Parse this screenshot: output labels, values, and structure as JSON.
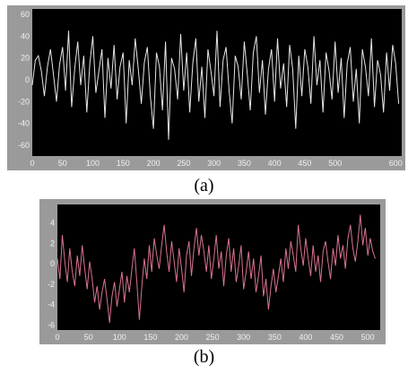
{
  "figures": [
    {
      "caption": "(a)"
    },
    {
      "caption": "(b)"
    }
  ],
  "chart_data": [
    {
      "type": "line",
      "title": "",
      "xlabel": "",
      "ylabel": "",
      "xlim": [
        0,
        610
      ],
      "ylim": [
        -70,
        65
      ],
      "xticks": [
        "0",
        "50",
        "100",
        "150",
        "200",
        "250",
        "300",
        "350",
        "400",
        "450",
        "500",
        "600"
      ],
      "xtick_values": [
        0,
        50,
        100,
        150,
        200,
        250,
        300,
        350,
        400,
        450,
        500,
        600
      ],
      "yticks": [
        "60",
        "40",
        "20",
        "0",
        "-20",
        "-40",
        "-60"
      ],
      "ytick_values": [
        60,
        40,
        20,
        0,
        -20,
        -40,
        -60
      ],
      "grid": false,
      "background": "#000000",
      "line_color": "#e6e6e6",
      "series": [
        {
          "x_step": 5,
          "values": [
            -5,
            18,
            22,
            8,
            -15,
            12,
            28,
            5,
            -20,
            14,
            30,
            -10,
            45,
            -25,
            10,
            35,
            -5,
            22,
            -30,
            15,
            40,
            -12,
            8,
            28,
            -35,
            20,
            -8,
            32,
            -18,
            12,
            25,
            -40,
            18,
            -5,
            38,
            10,
            -22,
            16,
            30,
            -15,
            -45,
            25,
            12,
            -28,
            35,
            -55,
            20,
            10,
            -18,
            42,
            -10,
            25,
            -30,
            15,
            38,
            -20,
            12,
            -35,
            28,
            8,
            -15,
            45,
            -25,
            18,
            30,
            -10,
            -40,
            22,
            12,
            -18,
            35,
            5,
            -28,
            25,
            40,
            -12,
            18,
            -32,
            10,
            28,
            -20,
            38,
            -8,
            15,
            -25,
            32,
            10,
            -45,
            22,
            -15,
            28,
            12,
            -22,
            40,
            -5,
            18,
            -30,
            25,
            8,
            -18,
            35,
            -12,
            20,
            -35,
            15,
            30,
            -20,
            10,
            -40,
            28,
            12,
            -15,
            38,
            -25,
            18,
            5,
            -30,
            25,
            -10,
            32,
            15,
            -22
          ]
        }
      ]
    },
    {
      "type": "line",
      "title": "",
      "xlabel": "",
      "ylabel": "",
      "xlim": [
        0,
        520
      ],
      "ylim": [
        -6.5,
        5.8
      ],
      "xticks": [
        "0",
        "50",
        "100",
        "150",
        "200",
        "250",
        "300",
        "350",
        "400",
        "450",
        "500"
      ],
      "xtick_values": [
        0,
        50,
        100,
        150,
        200,
        250,
        300,
        350,
        400,
        450,
        500
      ],
      "yticks": [
        "4",
        "2",
        "0",
        "-2",
        "-4",
        "-6"
      ],
      "ytick_values": [
        4,
        2,
        0,
        -2,
        -4,
        -6
      ],
      "grid": false,
      "background": "#000000",
      "line_color": "#d9748f",
      "series": [
        {
          "x_step": 4,
          "values": [
            0.5,
            -1.5,
            2.8,
            0.2,
            -1.8,
            1.5,
            -0.8,
            -2.2,
            0.8,
            -1.2,
            1.8,
            -0.5,
            -2.5,
            0.2,
            -1.5,
            -3.8,
            -2.2,
            -4.5,
            -2.8,
            -1.5,
            -3.5,
            -5.8,
            -3.2,
            -1.8,
            -4.2,
            -2.5,
            -0.8,
            -3.8,
            -1.2,
            -2.8,
            -0.5,
            1.5,
            -1.8,
            -5.5,
            -2.2,
            0.5,
            -1.5,
            1.8,
            -0.8,
            2.5,
            0.8,
            -0.5,
            1.8,
            3.8,
            1.2,
            -0.8,
            2.2,
            0.2,
            -1.8,
            1.5,
            -0.5,
            -2.8,
            0.8,
            2.2,
            -1.2,
            1.5,
            3.5,
            0.8,
            2.8,
            1.2,
            -0.8,
            1.8,
            -1.5,
            0.5,
            2.8,
            -0.5,
            1.2,
            -2.2,
            0.8,
            2.5,
            -0.8,
            1.5,
            -1.8,
            -0.2,
            1.8,
            -2.5,
            -0.8,
            1.2,
            -1.5,
            0.5,
            -2.8,
            -1.2,
            0.8,
            -3.2,
            -1.5,
            -4.5,
            -2.2,
            -0.5,
            -2.8,
            -1.2,
            0.5,
            -1.8,
            1.5,
            -0.5,
            2.2,
            0.8,
            -0.8,
            3.8,
            1.5,
            -0.2,
            2.5,
            0.5,
            -1.2,
            1.8,
            -0.8,
            0.8,
            -1.8,
            1.2,
            2.2,
            0.2,
            -1.5,
            1.5,
            -0.2,
            2.8,
            0.5,
            1.8,
            -0.5,
            2.5,
            3.8,
            1.5,
            0.2,
            2.2,
            4.8,
            1.8,
            3.5,
            0.8,
            2.5,
            1.2,
            0.5
          ]
        }
      ]
    }
  ]
}
